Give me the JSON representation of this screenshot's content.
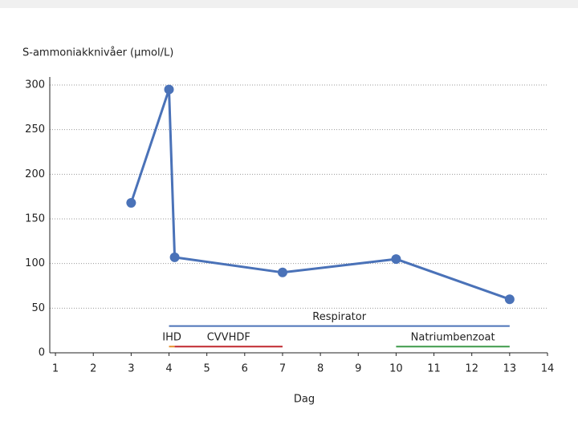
{
  "chart_data": {
    "type": "line",
    "y_axis_label": "S-ammoniakknivåer (µmol/L)",
    "x_axis_label": "Dag",
    "x": [
      3,
      4,
      4.15,
      7,
      10,
      13
    ],
    "series": [
      {
        "color": "#4a72b8",
        "values": [
          168,
          295,
          107,
          90,
          105,
          60
        ]
      }
    ],
    "xlim": [
      0.85,
      14
    ],
    "xticks": [
      1,
      2,
      3,
      4,
      5,
      6,
      7,
      8,
      9,
      10,
      11,
      12,
      13,
      14
    ],
    "ylim": [
      0,
      300
    ],
    "yticks": [
      0,
      50,
      100,
      150,
      200,
      250,
      300
    ],
    "grid": true,
    "intervals": [
      {
        "name": "Respirator",
        "color": "#4a72b8",
        "start": 4,
        "end": 13,
        "level": 30
      },
      {
        "name": "IHD",
        "color": "#e8902a",
        "start": 4,
        "end": 4.15,
        "level": 7
      },
      {
        "name": "CVVHDF",
        "color": "#c0282f",
        "start": 4.15,
        "end": 7,
        "level": 7
      },
      {
        "name": "Natriumbenzoat",
        "color": "#3e9a4a",
        "start": 10,
        "end": 13,
        "level": 7
      }
    ]
  }
}
